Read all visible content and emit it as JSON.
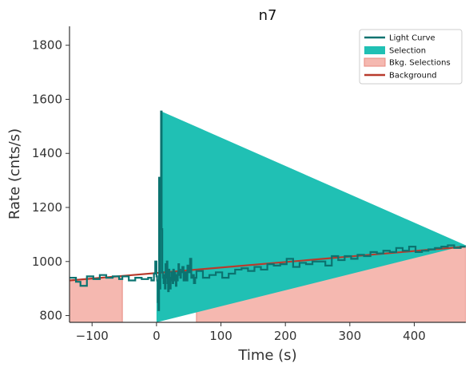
{
  "chart_data": {
    "type": "line",
    "title": "n7",
    "xlabel": "Time (s)",
    "ylabel": "Rate (cnts/s)",
    "xlim": [
      -135,
      480
    ],
    "ylim": [
      775,
      1870
    ],
    "xticks": [
      -100,
      0,
      100,
      200,
      300,
      400
    ],
    "yticks": [
      800,
      1000,
      1200,
      1400,
      1600,
      1800
    ],
    "xtick_labels": [
      "−100",
      "0",
      "100",
      "200",
      "300",
      "400"
    ],
    "ytick_labels": [
      "800",
      "1000",
      "1200",
      "1400",
      "1600",
      "1800"
    ],
    "legend_position": "top-right",
    "legend": [
      "Light Curve",
      "Selection",
      "Bkg. Selections",
      "Background"
    ],
    "colors": {
      "light_curve": "#0b7370",
      "selection": "#20c0b4",
      "bkg_fill": "#f5b8b0",
      "bkg_edge": "#e88a7f",
      "background": "#b83a2c",
      "axes": "#333333"
    },
    "selection": [
      0,
      8
    ],
    "bkg_selections": [
      [
        -135,
        -53
      ],
      [
        62,
        480
      ]
    ],
    "background_line": {
      "x": [
        -135,
        480
      ],
      "y": [
        930,
        1055
      ]
    },
    "light_curve": {
      "x_edges": [
        -135,
        -125,
        -118,
        -108,
        -98,
        -88,
        -78,
        -68,
        -58,
        -53,
        -43,
        -33,
        -23,
        -13,
        -8,
        -4,
        -2,
        0,
        1,
        2,
        3,
        4,
        5,
        6,
        7,
        8,
        9,
        10,
        11,
        12,
        13,
        14,
        15,
        16,
        17,
        18,
        19,
        20,
        21,
        22,
        23,
        24,
        25,
        26,
        27,
        28,
        29,
        30,
        31,
        32,
        33,
        34,
        35,
        36,
        37,
        38,
        40,
        42,
        44,
        46,
        48,
        50,
        52,
        54,
        56,
        58,
        60,
        62,
        72,
        82,
        92,
        102,
        112,
        122,
        132,
        142,
        152,
        162,
        172,
        182,
        192,
        202,
        212,
        222,
        232,
        242,
        252,
        262,
        272,
        282,
        292,
        302,
        312,
        322,
        332,
        342,
        352,
        362,
        372,
        382,
        392,
        402,
        412,
        422,
        432,
        442,
        452,
        462,
        472,
        480
      ],
      "y": [
        940,
        925,
        910,
        945,
        935,
        950,
        940,
        945,
        935,
        945,
        930,
        940,
        935,
        940,
        930,
        955,
        1000,
        945,
        930,
        850,
        820,
        1310,
        900,
        1200,
        1555,
        1120,
        960,
        940,
        920,
        950,
        900,
        990,
        940,
        1000,
        920,
        890,
        970,
        940,
        900,
        930,
        960,
        940,
        920,
        970,
        930,
        960,
        940,
        910,
        950,
        930,
        960,
        990,
        950,
        970,
        940,
        960,
        980,
        930,
        960,
        930,
        985,
        960,
        1010,
        940,
        950,
        920,
        940,
        965,
        940,
        950,
        960,
        940,
        955,
        970,
        975,
        965,
        980,
        970,
        990,
        985,
        990,
        1010,
        980,
        995,
        990,
        1000,
        1000,
        985,
        1020,
        1005,
        1020,
        1010,
        1025,
        1020,
        1035,
        1030,
        1040,
        1035,
        1050,
        1040,
        1055,
        1035,
        1040,
        1045,
        1050,
        1055,
        1060,
        1050,
        1055,
        1060
      ]
    }
  }
}
